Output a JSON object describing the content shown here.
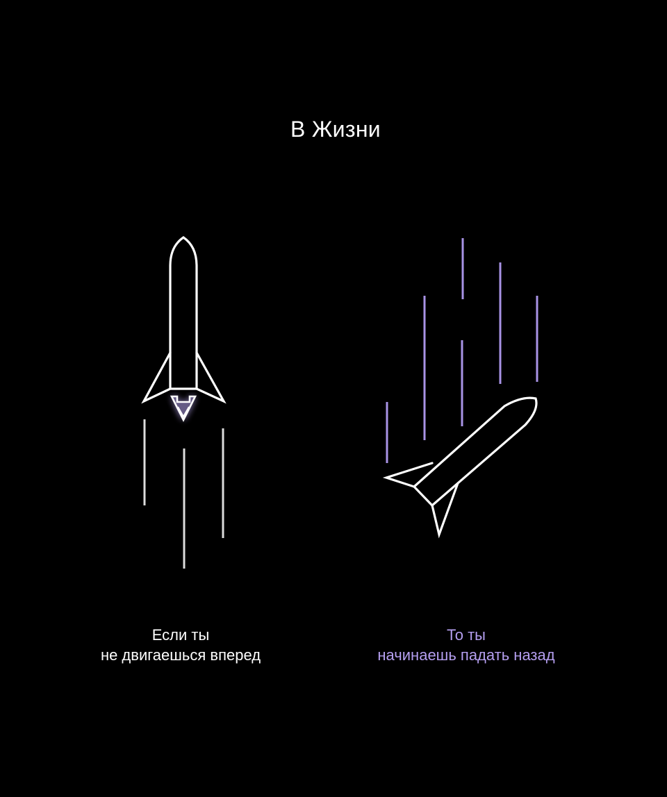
{
  "title": "В Жизни",
  "left_caption": {
    "line1": "Если ты",
    "line2": "не двигаешься вперед"
  },
  "right_caption": {
    "line1": "То ты",
    "line2": "начинаешь падать назад"
  },
  "colors": {
    "background": "#000000",
    "primary_text": "#ffffff",
    "accent": "#b59ff0",
    "left_speed_lines": "#dcdcdc",
    "right_speed_lines": "#a993e6"
  },
  "icons": {
    "left": "rocket-up-icon",
    "right": "rocket-falling-icon"
  }
}
